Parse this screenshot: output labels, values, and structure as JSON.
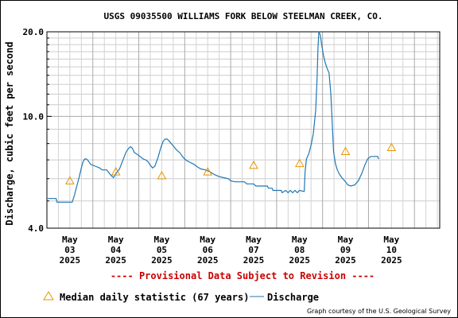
{
  "chart_data": {
    "type": "line",
    "title": "USGS 09035500 WILLIAMS FORK BELOW STEELMAN CREEK, CO.",
    "ylabel": "Discharge, cubic feet per second",
    "xlabel": "",
    "y_scale": "log",
    "ylim": [
      4.0,
      20.0
    ],
    "y_ticks": [
      "20.0",
      "10.0",
      "4.0"
    ],
    "y_tick_values": [
      20.0,
      10.0,
      4.0
    ],
    "x_tick_labels": [
      [
        "May",
        "03",
        "2025"
      ],
      [
        "May",
        "04",
        "2025"
      ],
      [
        "May",
        "05",
        "2025"
      ],
      [
        "May",
        "06",
        "2025"
      ],
      [
        "May",
        "07",
        "2025"
      ],
      [
        "May",
        "08",
        "2025"
      ],
      [
        "May",
        "09",
        "2025"
      ],
      [
        "May",
        "10",
        "2025"
      ]
    ],
    "x_range_days": [
      2.0,
      10.55
    ],
    "grid": true,
    "series": [
      {
        "name": "Discharge",
        "style": "line",
        "color": "#1f77b4",
        "points": [
          [
            2.0,
            5.1
          ],
          [
            2.2,
            5.1
          ],
          [
            2.22,
            4.95
          ],
          [
            2.55,
            4.95
          ],
          [
            2.6,
            5.25
          ],
          [
            2.65,
            5.65
          ],
          [
            2.7,
            6.05
          ],
          [
            2.75,
            6.55
          ],
          [
            2.78,
            6.85
          ],
          [
            2.82,
            7.05
          ],
          [
            2.86,
            7.05
          ],
          [
            2.9,
            6.95
          ],
          [
            2.95,
            6.75
          ],
          [
            3.05,
            6.65
          ],
          [
            3.15,
            6.55
          ],
          [
            3.2,
            6.45
          ],
          [
            3.3,
            6.45
          ],
          [
            3.35,
            6.3
          ],
          [
            3.4,
            6.15
          ],
          [
            3.45,
            6.05
          ],
          [
            3.5,
            6.25
          ],
          [
            3.58,
            6.5
          ],
          [
            3.65,
            6.95
          ],
          [
            3.72,
            7.45
          ],
          [
            3.78,
            7.7
          ],
          [
            3.82,
            7.8
          ],
          [
            3.86,
            7.7
          ],
          [
            3.9,
            7.45
          ],
          [
            3.95,
            7.35
          ],
          [
            4.0,
            7.25
          ],
          [
            4.05,
            7.15
          ],
          [
            4.1,
            7.05
          ],
          [
            4.15,
            7.0
          ],
          [
            4.2,
            6.9
          ],
          [
            4.25,
            6.7
          ],
          [
            4.3,
            6.55
          ],
          [
            4.35,
            6.65
          ],
          [
            4.42,
            7.15
          ],
          [
            4.48,
            7.75
          ],
          [
            4.53,
            8.15
          ],
          [
            4.57,
            8.3
          ],
          [
            4.62,
            8.3
          ],
          [
            4.68,
            8.1
          ],
          [
            4.75,
            7.85
          ],
          [
            4.82,
            7.6
          ],
          [
            4.9,
            7.4
          ],
          [
            4.95,
            7.2
          ],
          [
            5.0,
            7.05
          ],
          [
            5.05,
            6.95
          ],
          [
            5.12,
            6.85
          ],
          [
            5.2,
            6.75
          ],
          [
            5.28,
            6.6
          ],
          [
            5.35,
            6.5
          ],
          [
            5.45,
            6.45
          ],
          [
            5.55,
            6.35
          ],
          [
            5.65,
            6.2
          ],
          [
            5.75,
            6.1
          ],
          [
            5.85,
            6.05
          ],
          [
            5.95,
            6.0
          ],
          [
            6.0,
            5.9
          ],
          [
            6.1,
            5.85
          ],
          [
            6.3,
            5.85
          ],
          [
            6.35,
            5.75
          ],
          [
            6.5,
            5.75
          ],
          [
            6.55,
            5.65
          ],
          [
            6.8,
            5.65
          ],
          [
            6.82,
            5.55
          ],
          [
            6.9,
            5.55
          ],
          [
            6.92,
            5.45
          ],
          [
            7.1,
            5.45
          ],
          [
            7.12,
            5.35
          ],
          [
            7.2,
            5.45
          ],
          [
            7.25,
            5.35
          ],
          [
            7.3,
            5.45
          ],
          [
            7.35,
            5.35
          ],
          [
            7.4,
            5.45
          ],
          [
            7.45,
            5.35
          ],
          [
            7.5,
            5.45
          ],
          [
            7.6,
            5.4
          ],
          [
            7.62,
            6.35
          ],
          [
            7.65,
            7.05
          ],
          [
            7.7,
            7.35
          ],
          [
            7.75,
            7.9
          ],
          [
            7.8,
            8.7
          ],
          [
            7.85,
            10.5
          ],
          [
            7.88,
            13.5
          ],
          [
            7.9,
            17.5
          ],
          [
            7.92,
            20.0
          ],
          [
            7.95,
            19.5
          ],
          [
            7.98,
            18.0
          ],
          [
            8.02,
            16.5
          ],
          [
            8.06,
            15.5
          ],
          [
            8.1,
            14.8
          ],
          [
            8.14,
            14.3
          ],
          [
            8.18,
            12.0
          ],
          [
            8.21,
            9.5
          ],
          [
            8.24,
            7.5
          ],
          [
            8.28,
            6.8
          ],
          [
            8.32,
            6.45
          ],
          [
            8.36,
            6.25
          ],
          [
            8.42,
            6.05
          ],
          [
            8.5,
            5.85
          ],
          [
            8.55,
            5.7
          ],
          [
            8.62,
            5.65
          ],
          [
            8.7,
            5.7
          ],
          [
            8.78,
            5.9
          ],
          [
            8.86,
            6.3
          ],
          [
            8.92,
            6.7
          ],
          [
            8.98,
            7.05
          ],
          [
            9.05,
            7.2
          ],
          [
            9.2,
            7.2
          ],
          [
            9.22,
            7.05
          ]
        ]
      },
      {
        "name": "Median daily statistic (67 years)",
        "style": "triangle",
        "color": "#e69500",
        "points": [
          [
            2.5,
            5.9
          ],
          [
            3.5,
            6.35
          ],
          [
            4.5,
            6.15
          ],
          [
            5.5,
            6.35
          ],
          [
            6.5,
            6.7
          ],
          [
            7.5,
            6.8
          ],
          [
            8.5,
            7.5
          ],
          [
            9.5,
            7.75
          ]
        ]
      }
    ],
    "footer": "---- Provisional Data Subject to Revision ----",
    "credit": "Graph courtesy of the U.S. Geological Survey"
  },
  "legend": {
    "median_label": "Median daily statistic (67 years)",
    "discharge_label": "Discharge"
  }
}
